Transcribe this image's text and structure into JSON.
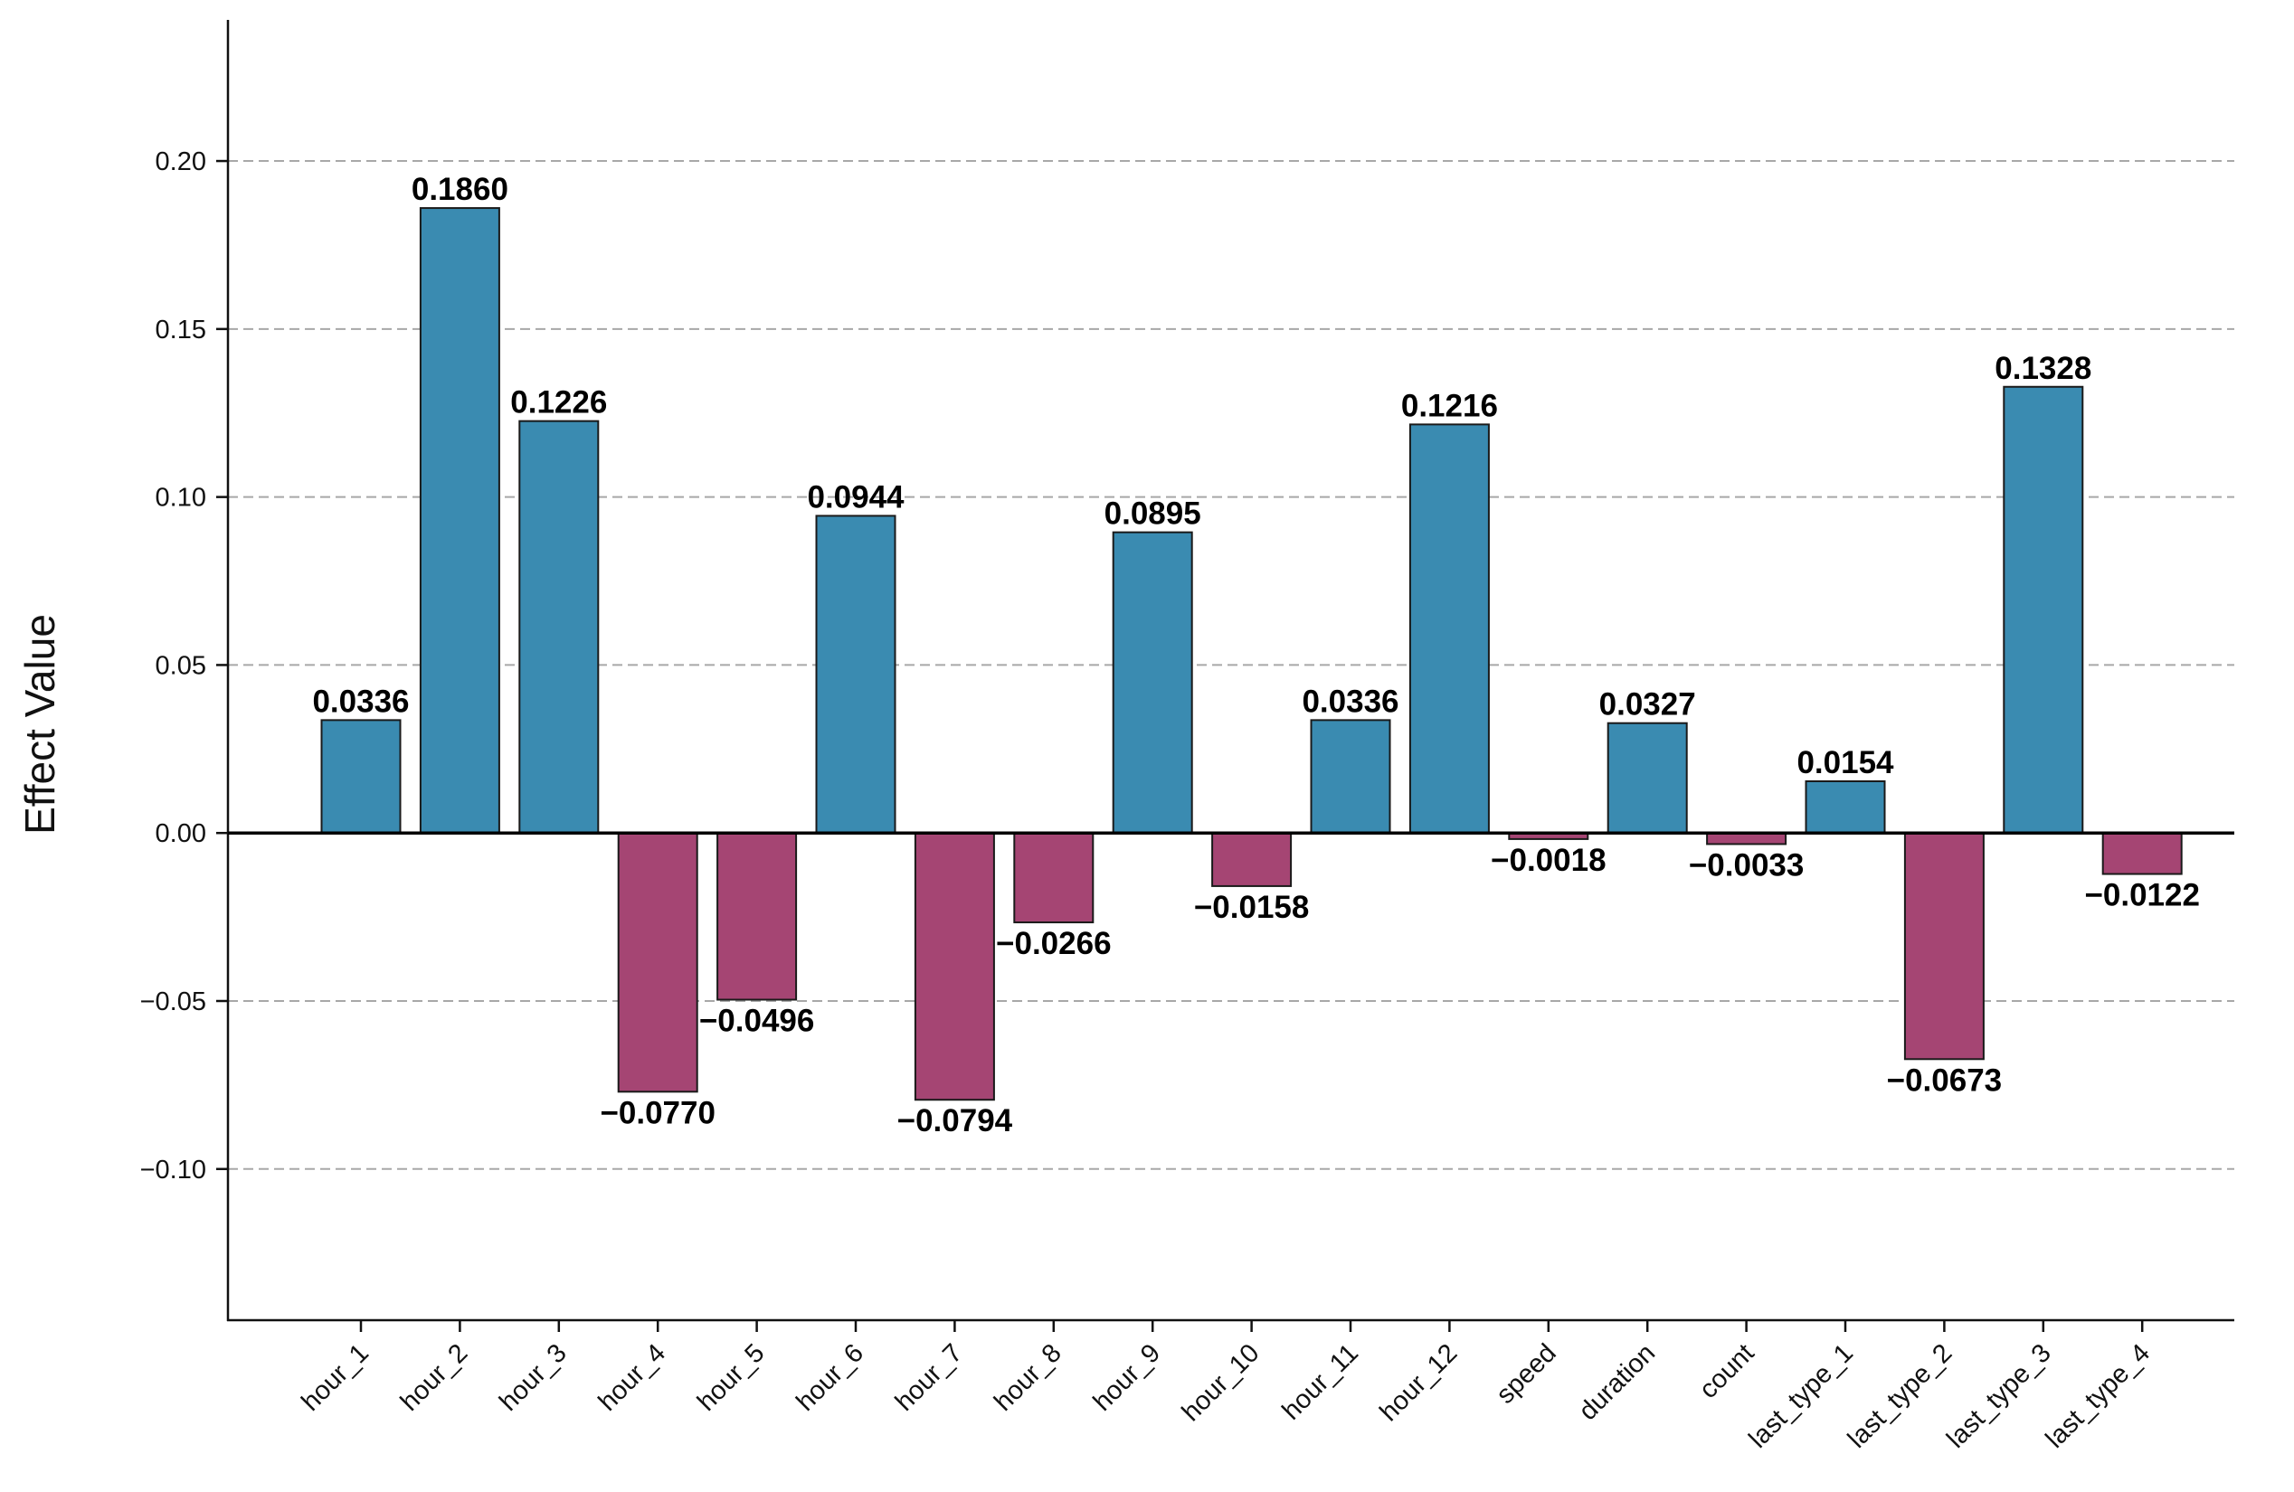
{
  "chart_data": {
    "type": "bar",
    "title": "",
    "xlabel": "",
    "ylabel": "Effect Value",
    "ylim": [
      -0.145,
      0.242
    ],
    "yticks": [
      -0.1,
      -0.05,
      0.0,
      0.05,
      0.1,
      0.15,
      0.2
    ],
    "ytick_labels": [
      "−0.10",
      "−0.05",
      "0.00",
      "0.05",
      "0.10",
      "0.15",
      "0.20"
    ],
    "grid": "horizontal dashed",
    "categories": [
      "hour_1",
      "hour_2",
      "hour_3",
      "hour_4",
      "hour_5",
      "hour_6",
      "hour_7",
      "hour_8",
      "hour_9",
      "hour_10",
      "hour_11",
      "hour_12",
      "speed",
      "duration",
      "count",
      "last_type_1",
      "last_type_2",
      "last_type_3",
      "last_type_4"
    ],
    "values": [
      0.0336,
      0.186,
      0.1226,
      -0.077,
      -0.0496,
      0.0944,
      -0.0794,
      -0.0266,
      0.0895,
      -0.0158,
      0.0336,
      0.1216,
      -0.0018,
      0.0327,
      -0.0033,
      0.0154,
      -0.0673,
      0.1328,
      -0.0122
    ],
    "value_labels": [
      "0.0336",
      "0.1860",
      "0.1226",
      "−0.0770",
      "−0.0496",
      "0.0944",
      "−0.0794",
      "−0.0266",
      "0.0895",
      "−0.0158",
      "0.0336",
      "0.1216",
      "−0.0018",
      "0.0327",
      "−0.0033",
      "0.0154",
      "−0.0673",
      "0.1328",
      "−0.0122"
    ],
    "colors": {
      "positive": "#3a8bb1",
      "negative": "#a54573",
      "bar_edge": "#1a1a1a",
      "grid": "#a8a8a8",
      "axis": "#111111"
    }
  }
}
